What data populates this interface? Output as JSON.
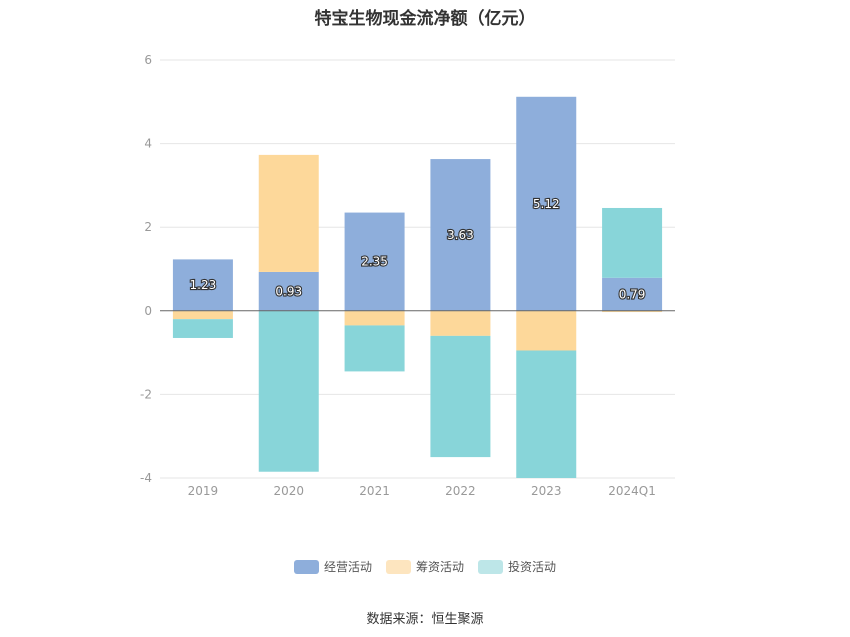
{
  "chart_data": {
    "type": "bar",
    "stacked": true,
    "title": "特宝生物现金流净额（亿元）",
    "categories": [
      "2019",
      "2020",
      "2021",
      "2022",
      "2023",
      "2024Q1"
    ],
    "ylim": [
      -4,
      6
    ],
    "yticks": [
      -4,
      -2,
      0,
      2,
      4,
      6
    ],
    "grid": true,
    "legend_position": "bottom",
    "series": [
      {
        "name": "经营活动",
        "color": "#8eaedb",
        "values": [
          1.23,
          0.93,
          2.35,
          3.63,
          5.12,
          0.79
        ],
        "labels": [
          "1.23",
          "0.93",
          "2.35",
          "3.63",
          "5.12",
          "0.79"
        ]
      },
      {
        "name": "筹资活动",
        "color": "#fdd89a",
        "values": [
          -0.2,
          2.8,
          -0.35,
          -0.6,
          -0.95,
          -0.03
        ]
      },
      {
        "name": "投资活动",
        "color": "#88d5d9",
        "values": [
          -0.45,
          -3.85,
          -1.1,
          -2.9,
          -3.05,
          1.67
        ]
      }
    ]
  },
  "source": "数据来源：恒生聚源"
}
